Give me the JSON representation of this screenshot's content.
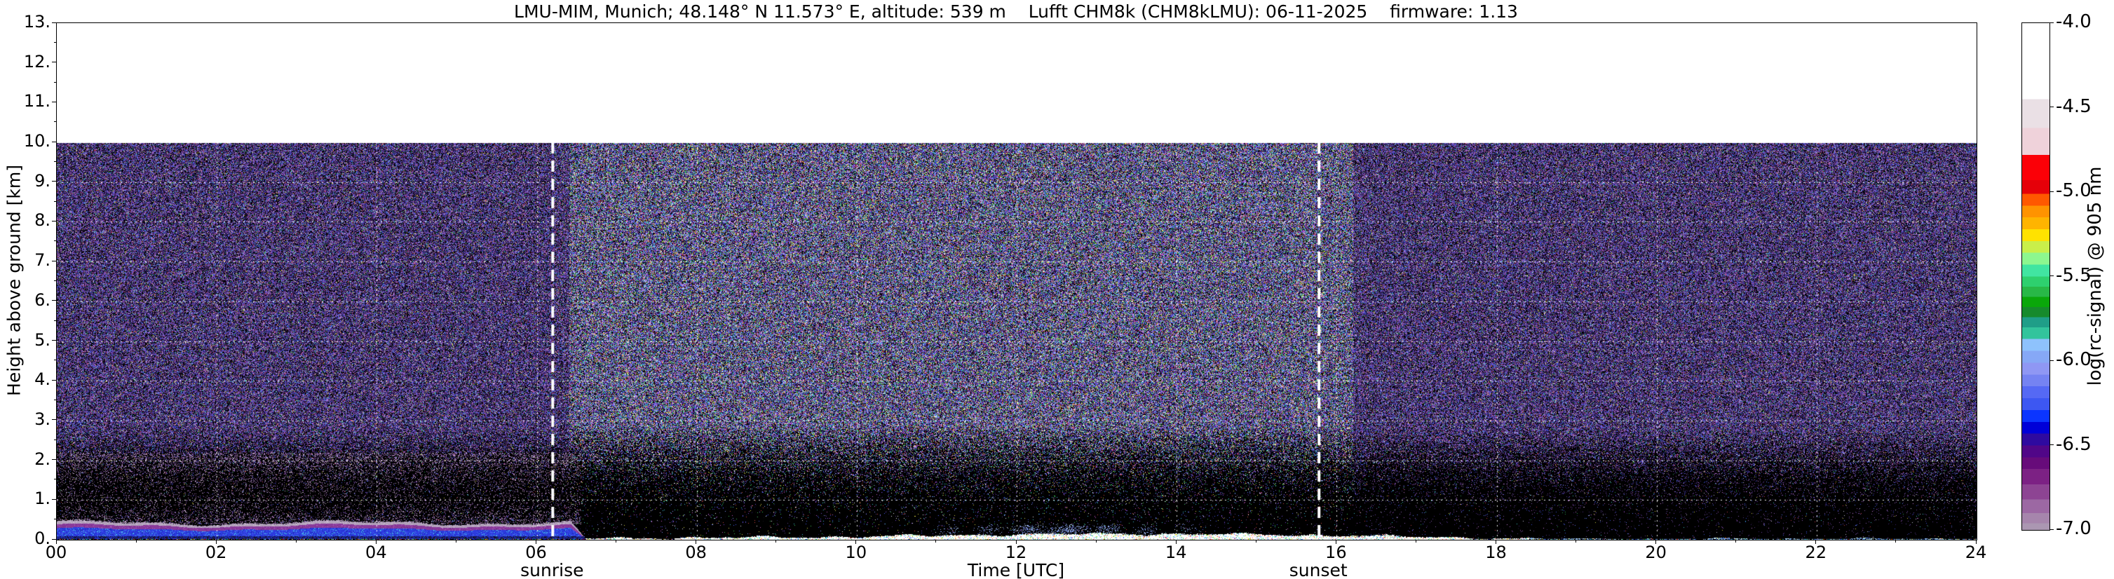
{
  "title": "LMU-MIM, Munich; 48.148° N 11.573° E, altitude: 539 m    Lufft CHM8k (CHM8kLMU): 06-11-2025    firmware: 1.13",
  "annotations": {
    "sunrise": "sunrise",
    "sunset": "sunset"
  },
  "axes": {
    "x": {
      "label": "Time [UTC]",
      "range": [
        0,
        24
      ],
      "tick_values": [
        0,
        2,
        4,
        6,
        8,
        10,
        12,
        14,
        16,
        18,
        20,
        22,
        24
      ],
      "tick_labels": [
        "00",
        "02",
        "04",
        "06",
        "08",
        "10",
        "12",
        "14",
        "16",
        "18",
        "20",
        "22",
        "24"
      ],
      "minor_step": 1
    },
    "y": {
      "label": "Height above ground [km]",
      "range": [
        0,
        13
      ],
      "tick_values": [
        0,
        1,
        2,
        3,
        4,
        5,
        6,
        7,
        8,
        9,
        10,
        11,
        12,
        13
      ],
      "tick_labels": [
        "0.",
        "1.",
        "2.",
        "3.",
        "4.",
        "5.",
        "6.",
        "7.",
        "8.",
        "9.",
        "10.",
        "11.",
        "12.",
        "13."
      ],
      "minor_step": 0.5
    }
  },
  "colorbar": {
    "label": "log(rc-signal) @ 905 nm",
    "range": [
      -4.0,
      -7.0
    ],
    "tick_values": [
      -4.0,
      -4.5,
      -5.0,
      -5.5,
      -6.0,
      -6.5,
      -7.0
    ],
    "tick_labels": [
      "-4.0",
      "-4.5",
      "-5.0",
      "-5.5",
      "-6.0",
      "-6.5",
      "-7.0"
    ],
    "stops": [
      [
        -4.0,
        "#ffffff"
      ],
      [
        -4.45,
        "#eae0e5"
      ],
      [
        -4.62,
        "#efd2da"
      ],
      [
        -4.78,
        "#fb0007"
      ],
      [
        -4.93,
        "#e50009"
      ],
      [
        -5.01,
        "#ff5800"
      ],
      [
        -5.08,
        "#ff9300"
      ],
      [
        -5.15,
        "#ffb400"
      ],
      [
        -5.22,
        "#ffe200"
      ],
      [
        -5.29,
        "#c9ef4a"
      ],
      [
        -5.36,
        "#8df78f"
      ],
      [
        -5.43,
        "#41e5a1"
      ],
      [
        -5.5,
        "#2ed06e"
      ],
      [
        -5.56,
        "#28b847"
      ],
      [
        -5.62,
        "#0aa70a"
      ],
      [
        -5.68,
        "#168a2c"
      ],
      [
        -5.74,
        "#1f9e88"
      ],
      [
        -5.8,
        "#32c49c"
      ],
      [
        -5.87,
        "#8ec2fc"
      ],
      [
        -5.94,
        "#86a8f6"
      ],
      [
        -6.01,
        "#8f97f4"
      ],
      [
        -6.08,
        "#7583f2"
      ],
      [
        -6.15,
        "#5569f4"
      ],
      [
        -6.22,
        "#3d57f2"
      ],
      [
        -6.29,
        "#0b35ff"
      ],
      [
        -6.36,
        "#0000d8"
      ],
      [
        -6.43,
        "#2e0aa0"
      ],
      [
        -6.5,
        "#500688"
      ],
      [
        -6.57,
        "#670b7a"
      ],
      [
        -6.64,
        "#7c2184"
      ],
      [
        -6.73,
        "#8d4493"
      ],
      [
        -6.82,
        "#9c68a3"
      ],
      [
        -6.9,
        "#a685ac"
      ],
      [
        -6.96,
        "#ab97b2"
      ]
    ]
  },
  "chart_data": {
    "type": "heatmap",
    "title": "LMU-MIM, Munich; 48.148° N 11.573° E, altitude: 539 m    Lufft CHM8k (CHM8kLMU): 06-11-2025    firmware: 1.13",
    "xlabel": "Time [UTC]",
    "ylabel": "Height above ground [km]",
    "zlabel": "log(rc-signal) @ 905 nm",
    "x_range_hours": [
      0,
      24
    ],
    "y_range_km": [
      0,
      13
    ],
    "data_top_km": 10,
    "value_range_log": [
      -7.0,
      -4.0
    ],
    "sunrise_utc": 6.2,
    "sunset_utc": 15.78,
    "grid": {
      "on": true,
      "style": "white dashed",
      "x_step_hours": 2,
      "y_step_km": 1
    },
    "features": [
      "uncalibrated multicolour speckle noise (purple/blue dominant) fills 0-10 km, white (no data) above 10 km",
      "noise fades to black below ~2.5 km; nearly black below 1 km",
      "nocturnal boundary layer 00:00-06:30 UTC: mauve-grey top at ~0.45 km, purple body, strong blue band ~0.1-0.3 km, multicolour surface line",
      "after sunrise: thin bright white surface layer < ~0.2 km with red/yellow/cyan speckles, thickest ~12:00-17:00",
      "faint light-blue aerosol wisps ~0.15-0.4 km between ~11:00 and 14:00",
      "after ~18:15 only a very thin cyan/blue surface line remains",
      "thick white dashed vertical lines at sunrise (~06:12) and sunset (~15:47)"
    ],
    "render": {
      "night_palette": [
        [
          "#55388a",
          16
        ],
        [
          "#3f2573",
          14
        ],
        [
          "#6f49a6",
          10
        ],
        [
          "#8a5db2",
          7
        ],
        [
          "#3a4ed8",
          9
        ],
        [
          "#5b74ee",
          5
        ],
        [
          "#9b55b0",
          7
        ],
        [
          "#c478d2",
          3
        ],
        [
          "#2c9b55",
          3
        ],
        [
          "#3fc0c8",
          2
        ],
        [
          "#bf3a4a",
          2
        ],
        [
          "#cfc93f",
          2
        ],
        [
          "#c9c2d8",
          4
        ],
        [
          "#17101f",
          16
        ]
      ],
      "day_palette": [
        [
          "#4a5cf0",
          11
        ],
        [
          "#7a4cd2",
          9
        ],
        [
          "#3ebdd8",
          7
        ],
        [
          "#3fc35a",
          8
        ],
        [
          "#d8d74a",
          7
        ],
        [
          "#cf4a3f",
          6
        ],
        [
          "#c958c9",
          7
        ],
        [
          "#e8e6f0",
          7
        ],
        [
          "#8890f8",
          7
        ],
        [
          "#5a3b8c",
          8
        ],
        [
          "#2c1c66",
          9
        ],
        [
          "#17101f",
          14
        ]
      ],
      "speck_colors": [
        "#ff3b30",
        "#ffd60a",
        "#34c759",
        "#32d0e0",
        "#3a5bff",
        "#ffffff"
      ],
      "mauve_speckle": [
        "#a986b4",
        "#8a5f9a",
        "#c0a8c8"
      ],
      "day_palette_hours": [
        6.4,
        16.2
      ],
      "band_end_utc": 6.62,
      "seed": 20251106
    }
  }
}
